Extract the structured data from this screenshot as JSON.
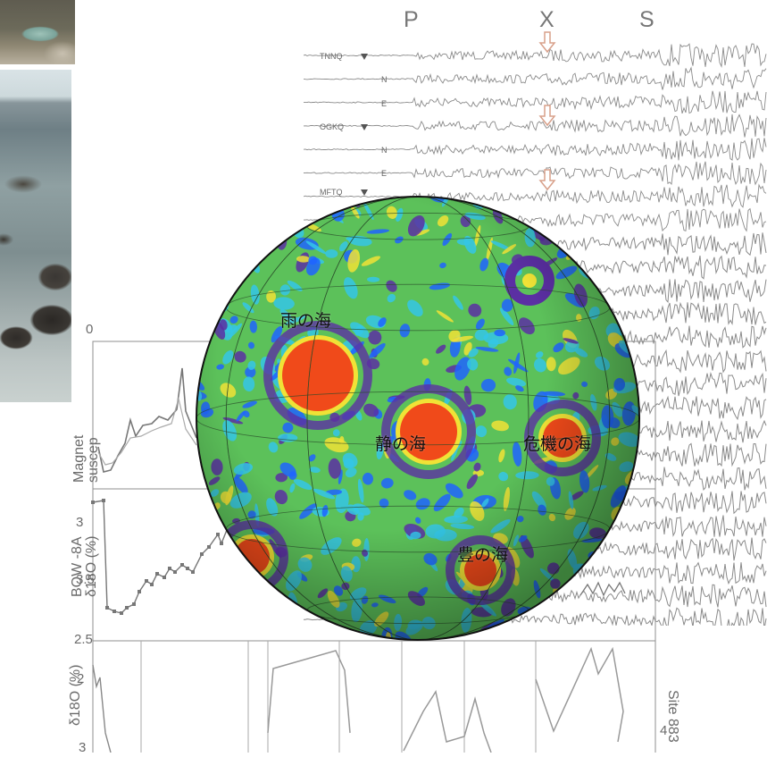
{
  "seismogram": {
    "phases": [
      "P",
      "X",
      "S"
    ],
    "stations": [
      {
        "name": "TNNQ",
        "components": [
          "N",
          "E"
        ]
      },
      {
        "name": "OGKQ",
        "components": [
          "N",
          "E"
        ]
      },
      {
        "name": "MFTQ",
        "components": []
      }
    ],
    "trace_color": "#8a8a8a",
    "arrow_color": "#d8a08a"
  },
  "proxy_plots": {
    "magnetic_axis_top_tick": "0",
    "magnetic_label_line1": "Magnet",
    "magnetic_label_line2": "suscep",
    "bow_label_line1": "BOW -8A",
    "bow_label_line2": "δ18O (%)",
    "bow_ticks": [
      "3",
      "3.5",
      "2.5"
    ],
    "lower_label": "δ18O (%)",
    "lower_ticks": [
      "2",
      "3"
    ],
    "site_label": "Site 883",
    "right_tick": "4"
  },
  "moon_map": {
    "maria": [
      "雨の海",
      "静の海",
      "危機の海",
      "豊の海"
    ],
    "colors": {
      "base": "#5cc15a",
      "low": "#1e64ff",
      "mid": "#34c6e8",
      "high": "#f0e236",
      "peak": "#f04a1a",
      "ring": "#5b2fa3"
    }
  }
}
